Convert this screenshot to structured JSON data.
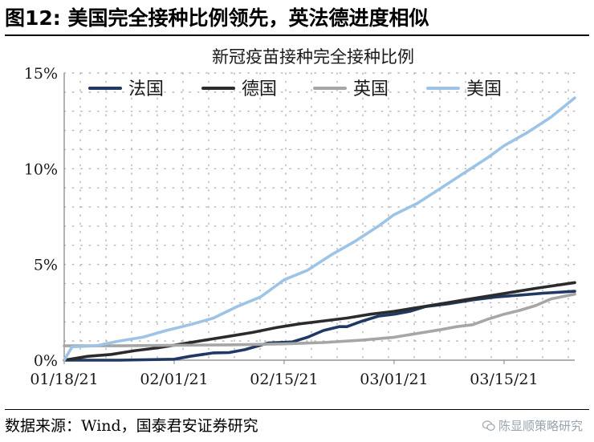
{
  "figure": {
    "label": "图12: 美国完全接种比例领先，英法德进度相似",
    "source": "数据来源：Wind，国泰君安证券研究",
    "watermark": "陈显顺策略研究",
    "watermark_icon": "wechat-icon"
  },
  "chart_data": {
    "type": "line",
    "title": "新冠疫苗接种完全接种比例",
    "xlabel": "",
    "ylabel": "",
    "x_range": [
      "2021-01-18",
      "2021-03-24"
    ],
    "x_ticks": [
      "01/18/21",
      "02/01/21",
      "02/15/21",
      "03/01/21",
      "03/15/21"
    ],
    "x_tick_dates": [
      "2021-01-18",
      "2021-02-01",
      "2021-02-15",
      "2021-03-01",
      "2021-03-15"
    ],
    "ylim": [
      0,
      15
    ],
    "y_ticks": [
      0,
      5,
      10,
      15
    ],
    "y_tick_labels": [
      "0%",
      "5%",
      "10%",
      "15%"
    ],
    "y_unit": "%",
    "grid": "dotted",
    "legend": "top",
    "series": [
      {
        "name": "法国",
        "color": "#1f3864",
        "points": [
          [
            "2021-01-18",
            0.0
          ],
          [
            "2021-01-25",
            0.0
          ],
          [
            "2021-02-01",
            0.05
          ],
          [
            "2021-02-03",
            0.2
          ],
          [
            "2021-02-06",
            0.38
          ],
          [
            "2021-02-08",
            0.4
          ],
          [
            "2021-02-10",
            0.55
          ],
          [
            "2021-02-13",
            0.9
          ],
          [
            "2021-02-16",
            0.95
          ],
          [
            "2021-02-18",
            1.2
          ],
          [
            "2021-02-20",
            1.55
          ],
          [
            "2021-02-22",
            1.75
          ],
          [
            "2021-02-23",
            1.75
          ],
          [
            "2021-02-25",
            2.05
          ],
          [
            "2021-02-27",
            2.3
          ],
          [
            "2021-03-01",
            2.4
          ],
          [
            "2021-03-03",
            2.55
          ],
          [
            "2021-03-05",
            2.8
          ],
          [
            "2021-03-08",
            2.95
          ],
          [
            "2021-03-11",
            3.15
          ],
          [
            "2021-03-14",
            3.3
          ],
          [
            "2021-03-17",
            3.4
          ],
          [
            "2021-03-20",
            3.5
          ],
          [
            "2021-03-24",
            3.6
          ]
        ]
      },
      {
        "name": "德国",
        "color": "#2b2b2b",
        "points": [
          [
            "2021-01-18",
            0.0
          ],
          [
            "2021-01-21",
            0.2
          ],
          [
            "2021-01-24",
            0.3
          ],
          [
            "2021-01-27",
            0.5
          ],
          [
            "2021-01-30",
            0.65
          ],
          [
            "2021-02-02",
            0.85
          ],
          [
            "2021-02-05",
            1.05
          ],
          [
            "2021-02-08",
            1.25
          ],
          [
            "2021-02-11",
            1.45
          ],
          [
            "2021-02-14",
            1.7
          ],
          [
            "2021-02-17",
            1.9
          ],
          [
            "2021-02-20",
            2.05
          ],
          [
            "2021-02-23",
            2.2
          ],
          [
            "2021-02-26",
            2.4
          ],
          [
            "2021-03-01",
            2.55
          ],
          [
            "2021-03-04",
            2.75
          ],
          [
            "2021-03-07",
            2.95
          ],
          [
            "2021-03-10",
            3.15
          ],
          [
            "2021-03-13",
            3.35
          ],
          [
            "2021-03-16",
            3.55
          ],
          [
            "2021-03-19",
            3.75
          ],
          [
            "2021-03-24",
            4.05
          ]
        ]
      },
      {
        "name": "英国",
        "color": "#a6a6a6",
        "points": [
          [
            "2021-01-18",
            0.75
          ],
          [
            "2021-01-25",
            0.75
          ],
          [
            "2021-02-01",
            0.78
          ],
          [
            "2021-02-08",
            0.8
          ],
          [
            "2021-02-15",
            0.85
          ],
          [
            "2021-02-20",
            0.92
          ],
          [
            "2021-02-25",
            1.05
          ],
          [
            "2021-03-01",
            1.2
          ],
          [
            "2021-03-04",
            1.4
          ],
          [
            "2021-03-07",
            1.6
          ],
          [
            "2021-03-09",
            1.75
          ],
          [
            "2021-03-11",
            1.85
          ],
          [
            "2021-03-13",
            2.15
          ],
          [
            "2021-03-15",
            2.4
          ],
          [
            "2021-03-17",
            2.6
          ],
          [
            "2021-03-19",
            2.85
          ],
          [
            "2021-03-21",
            3.2
          ],
          [
            "2021-03-24",
            3.45
          ]
        ]
      },
      {
        "name": "美国",
        "color": "#9dc3e6",
        "points": [
          [
            "2021-01-18",
            0.0
          ],
          [
            "2021-01-19",
            0.7
          ],
          [
            "2021-01-22",
            0.75
          ],
          [
            "2021-01-25",
            1.0
          ],
          [
            "2021-01-28",
            1.2
          ],
          [
            "2021-01-31",
            1.55
          ],
          [
            "2021-02-03",
            1.85
          ],
          [
            "2021-02-06",
            2.2
          ],
          [
            "2021-02-09",
            2.8
          ],
          [
            "2021-02-12",
            3.3
          ],
          [
            "2021-02-15",
            4.2
          ],
          [
            "2021-02-18",
            4.7
          ],
          [
            "2021-02-21",
            5.5
          ],
          [
            "2021-02-24",
            6.2
          ],
          [
            "2021-02-27",
            7.0
          ],
          [
            "2021-03-01",
            7.6
          ],
          [
            "2021-03-04",
            8.2
          ],
          [
            "2021-03-07",
            9.0
          ],
          [
            "2021-03-10",
            9.8
          ],
          [
            "2021-03-13",
            10.6
          ],
          [
            "2021-03-15",
            11.2
          ],
          [
            "2021-03-18",
            11.9
          ],
          [
            "2021-03-21",
            12.7
          ],
          [
            "2021-03-24",
            13.7
          ]
        ]
      }
    ]
  }
}
